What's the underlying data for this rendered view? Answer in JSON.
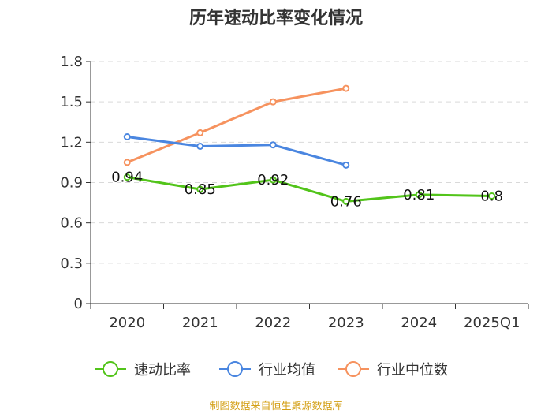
{
  "chart_data": {
    "type": "line",
    "title": "历年速动比率变化情况",
    "categories": [
      "2020",
      "2021",
      "2022",
      "2023",
      "2024",
      "2025Q1"
    ],
    "yticks": [
      "0",
      "0.3",
      "0.6",
      "0.9",
      "1.2",
      "1.5",
      "1.8"
    ],
    "ylim": [
      0,
      1.8
    ],
    "grid": true,
    "legend_position": "bottom",
    "series": [
      {
        "name": "速动比率",
        "color": "#52c41a",
        "values": [
          0.94,
          0.85,
          0.92,
          0.76,
          0.81,
          0.8
        ],
        "labels": [
          "0.94",
          "0.85",
          "0.92",
          "0.76",
          "0.81",
          "0.8"
        ]
      },
      {
        "name": "行业均值",
        "color": "#4a86e0",
        "values": [
          1.24,
          1.17,
          1.18,
          1.03,
          null,
          null
        ]
      },
      {
        "name": "行业中位数",
        "color": "#f6925e",
        "values": [
          1.05,
          1.27,
          1.5,
          1.6,
          null,
          null
        ]
      }
    ]
  },
  "source": "制图数据来自恒生聚源数据库"
}
